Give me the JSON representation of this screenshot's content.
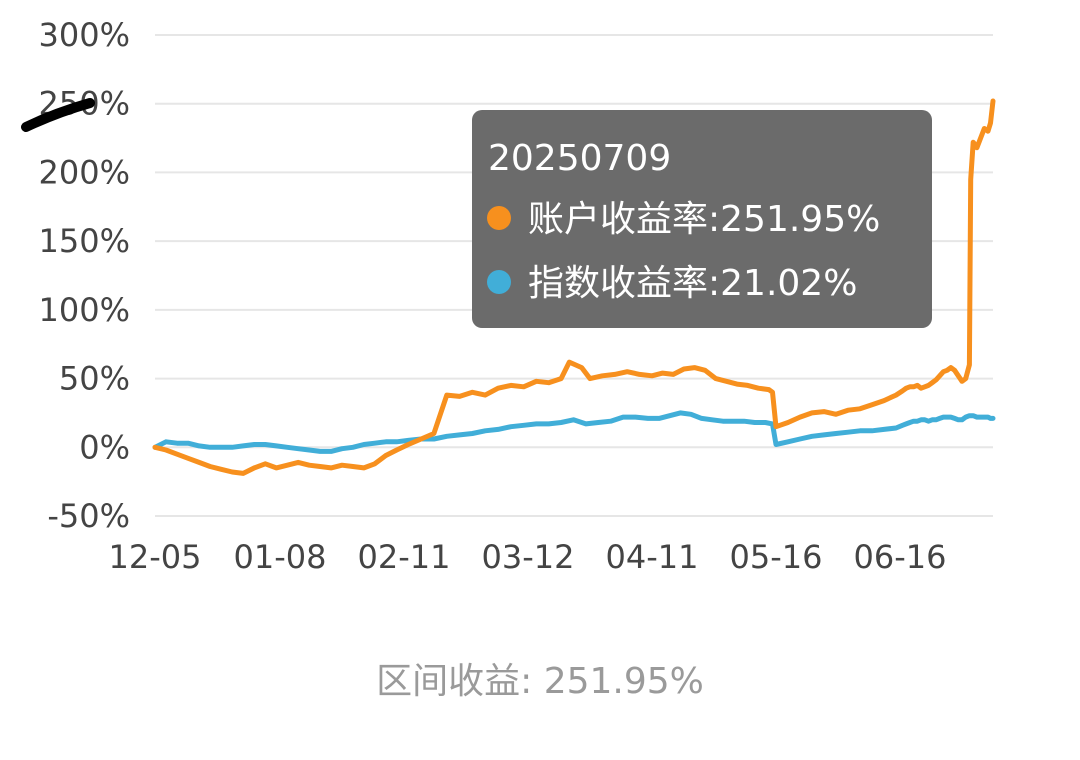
{
  "chart_data": {
    "type": "line",
    "y_ticks": [
      "300%",
      "250%",
      "200%",
      "150%",
      "100%",
      "50%",
      "0%",
      "-50%"
    ],
    "y_tick_values": [
      300,
      250,
      200,
      150,
      100,
      50,
      0,
      -50
    ],
    "ylim": [
      -50,
      300
    ],
    "x_ticks": [
      "12-05",
      "01-08",
      "02-11",
      "03-12",
      "04-11",
      "05-16",
      "06-16"
    ],
    "x_range_days": [
      0,
      216
    ],
    "x_tick_days": [
      0,
      34,
      68,
      97,
      127,
      162,
      193
    ],
    "grid": true,
    "series": [
      {
        "name": "账户收益率",
        "color": "#f7901e",
        "points": [
          [
            0,
            0
          ],
          [
            3,
            -2
          ],
          [
            6,
            -5
          ],
          [
            9,
            -8
          ],
          [
            12,
            -11
          ],
          [
            15,
            -14
          ],
          [
            18,
            -16
          ],
          [
            21,
            -18
          ],
          [
            24,
            -19
          ],
          [
            27,
            -15
          ],
          [
            30,
            -12
          ],
          [
            33,
            -15
          ],
          [
            36,
            -13
          ],
          [
            39,
            -11
          ],
          [
            42,
            -13
          ],
          [
            45,
            -14
          ],
          [
            48,
            -15
          ],
          [
            51,
            -13
          ],
          [
            54,
            -14
          ],
          [
            57,
            -15
          ],
          [
            60,
            -12
          ],
          [
            63,
            -6
          ],
          [
            66,
            -2
          ],
          [
            69,
            2
          ],
          [
            72,
            6
          ],
          [
            75,
            10
          ],
          [
            78,
            38
          ],
          [
            81,
            37
          ],
          [
            84,
            40
          ],
          [
            87,
            38
          ],
          [
            90,
            43
          ],
          [
            93,
            45
          ],
          [
            96,
            44
          ],
          [
            99,
            48
          ],
          [
            102,
            47
          ],
          [
            105,
            50
          ],
          [
            107,
            62
          ],
          [
            110,
            58
          ],
          [
            112,
            50
          ],
          [
            115,
            52
          ],
          [
            118,
            53
          ],
          [
            121,
            55
          ],
          [
            124,
            53
          ],
          [
            127,
            52
          ],
          [
            130,
            54
          ],
          [
            133,
            53
          ],
          [
            136,
            57
          ],
          [
            139,
            58
          ],
          [
            142,
            56
          ],
          [
            145,
            50
          ],
          [
            148,
            48
          ],
          [
            151,
            46
          ],
          [
            154,
            45
          ],
          [
            157,
            43
          ],
          [
            160,
            42
          ],
          [
            161,
            40
          ],
          [
            162,
            15
          ],
          [
            165,
            18
          ],
          [
            168,
            22
          ],
          [
            171,
            25
          ],
          [
            174,
            26
          ],
          [
            177,
            24
          ],
          [
            180,
            27
          ],
          [
            183,
            28
          ],
          [
            186,
            31
          ],
          [
            189,
            34
          ],
          [
            192,
            38
          ],
          [
            195,
            41
          ],
          [
            198,
            43
          ],
          [
            201,
            44
          ],
          [
            204,
            44
          ],
          [
            207,
            45
          ],
          [
            210,
            43
          ],
          [
            213,
            44
          ],
          [
            216,
            45
          ],
          [
            219,
            47
          ],
          [
            222,
            49
          ],
          [
            225,
            52
          ],
          [
            228,
            55
          ],
          [
            231,
            56
          ],
          [
            234,
            58
          ],
          [
            237,
            56
          ],
          [
            240,
            52
          ],
          [
            243,
            48
          ],
          [
            246,
            50
          ],
          [
            249,
            60
          ],
          [
            250,
            195
          ],
          [
            252,
            222
          ],
          [
            255,
            218
          ],
          [
            258,
            225
          ],
          [
            261,
            232
          ],
          [
            264,
            230
          ],
          [
            266,
            236
          ],
          [
            268,
            252
          ]
        ]
      },
      {
        "name": "指数收益率",
        "color": "#41aed8",
        "points": [
          [
            0,
            0
          ],
          [
            3,
            4
          ],
          [
            6,
            3
          ],
          [
            9,
            3
          ],
          [
            12,
            1
          ],
          [
            15,
            0
          ],
          [
            18,
            0
          ],
          [
            21,
            0
          ],
          [
            24,
            1
          ],
          [
            27,
            2
          ],
          [
            30,
            2
          ],
          [
            33,
            1
          ],
          [
            36,
            0
          ],
          [
            39,
            -1
          ],
          [
            42,
            -2
          ],
          [
            45,
            -3
          ],
          [
            48,
            -3
          ],
          [
            51,
            -1
          ],
          [
            54,
            0
          ],
          [
            57,
            2
          ],
          [
            60,
            3
          ],
          [
            63,
            4
          ],
          [
            66,
            4
          ],
          [
            69,
            5
          ],
          [
            72,
            6
          ],
          [
            75,
            6
          ],
          [
            78,
            8
          ],
          [
            81,
            9
          ],
          [
            84,
            10
          ],
          [
            87,
            12
          ],
          [
            90,
            13
          ],
          [
            93,
            15
          ],
          [
            96,
            16
          ],
          [
            99,
            17
          ],
          [
            102,
            17
          ],
          [
            105,
            18
          ],
          [
            108,
            20
          ],
          [
            111,
            17
          ],
          [
            114,
            18
          ],
          [
            117,
            19
          ],
          [
            120,
            22
          ],
          [
            123,
            22
          ],
          [
            126,
            21
          ],
          [
            129,
            21
          ],
          [
            132,
            23
          ],
          [
            135,
            25
          ],
          [
            138,
            24
          ],
          [
            141,
            21
          ],
          [
            144,
            20
          ],
          [
            147,
            19
          ],
          [
            150,
            19
          ],
          [
            153,
            19
          ],
          [
            156,
            18
          ],
          [
            159,
            18
          ],
          [
            161,
            17
          ],
          [
            162,
            2
          ],
          [
            165,
            4
          ],
          [
            168,
            6
          ],
          [
            171,
            8
          ],
          [
            174,
            9
          ],
          [
            177,
            10
          ],
          [
            180,
            11
          ],
          [
            183,
            12
          ],
          [
            186,
            12
          ],
          [
            189,
            13
          ],
          [
            192,
            14
          ],
          [
            195,
            16
          ],
          [
            198,
            17
          ],
          [
            201,
            18
          ],
          [
            204,
            19
          ],
          [
            207,
            19
          ],
          [
            210,
            20
          ],
          [
            213,
            20
          ],
          [
            216,
            19
          ],
          [
            219,
            20
          ],
          [
            222,
            20
          ],
          [
            225,
            21
          ],
          [
            228,
            22
          ],
          [
            231,
            22
          ],
          [
            234,
            22
          ],
          [
            237,
            21
          ],
          [
            240,
            20
          ],
          [
            243,
            20
          ],
          [
            246,
            22
          ],
          [
            249,
            23
          ],
          [
            252,
            23
          ],
          [
            255,
            22
          ],
          [
            258,
            22
          ],
          [
            261,
            22
          ],
          [
            264,
            22
          ],
          [
            266,
            21
          ],
          [
            268,
            21.02
          ]
        ]
      }
    ]
  },
  "tooltip": {
    "date": "20250709",
    "rows": [
      {
        "marker_color": "#f7901e",
        "text": "账户收益率:251.95%"
      },
      {
        "marker_color": "#41aed8",
        "text": "指数收益率:21.02%"
      }
    ]
  },
  "summary": "区间收益: 251.95%"
}
